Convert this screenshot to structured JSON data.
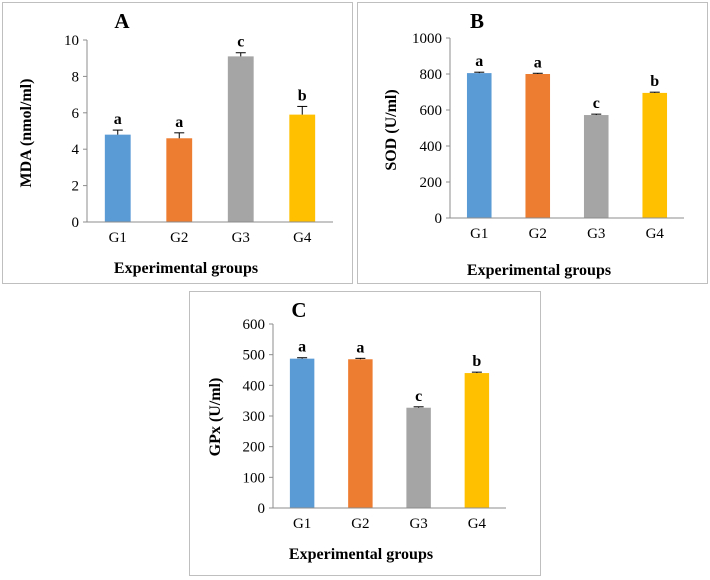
{
  "chart_data": [
    {
      "type": "bar",
      "panel_label": "A",
      "categories": [
        "G1",
        "G2",
        "G3",
        "G4"
      ],
      "values": [
        4.8,
        4.6,
        9.1,
        5.9
      ],
      "errors": [
        0.25,
        0.3,
        0.2,
        0.45
      ],
      "significance": [
        "a",
        "a",
        "c",
        "b"
      ],
      "colors": [
        "#5b9bd5",
        "#ed7d31",
        "#a5a5a5",
        "#ffc000"
      ],
      "xlabel": "Experimental groups",
      "ylabel": "MDA (nmol/ml)",
      "ylim": [
        0,
        10
      ],
      "yticks": [
        0,
        2,
        4,
        6,
        8,
        10
      ],
      "grid": false
    },
    {
      "type": "bar",
      "panel_label": "B",
      "categories": [
        "G1",
        "G2",
        "G3",
        "G4"
      ],
      "values": [
        805,
        800,
        572,
        695
      ],
      "errors": [
        5,
        4,
        5,
        4
      ],
      "significance": [
        "a",
        "a",
        "c",
        "b"
      ],
      "colors": [
        "#5b9bd5",
        "#ed7d31",
        "#a5a5a5",
        "#ffc000"
      ],
      "xlabel": "Experimental groups",
      "ylabel": "SOD (U/ml)",
      "ylim": [
        0,
        1000
      ],
      "yticks": [
        0,
        200,
        400,
        600,
        800,
        1000
      ],
      "grid": false
    },
    {
      "type": "bar",
      "panel_label": "C",
      "categories": [
        "G1",
        "G2",
        "G3",
        "G4"
      ],
      "values": [
        487,
        485,
        327,
        440
      ],
      "errors": [
        3,
        3,
        3,
        3
      ],
      "significance": [
        "a",
        "a",
        "c",
        "b"
      ],
      "colors": [
        "#5b9bd5",
        "#ed7d31",
        "#a5a5a5",
        "#ffc000"
      ],
      "xlabel": "Experimental groups",
      "ylabel": "GPx (U/ml)",
      "ylim": [
        0,
        600
      ],
      "yticks": [
        0,
        100,
        200,
        300,
        400,
        500,
        600
      ],
      "grid": false
    }
  ]
}
